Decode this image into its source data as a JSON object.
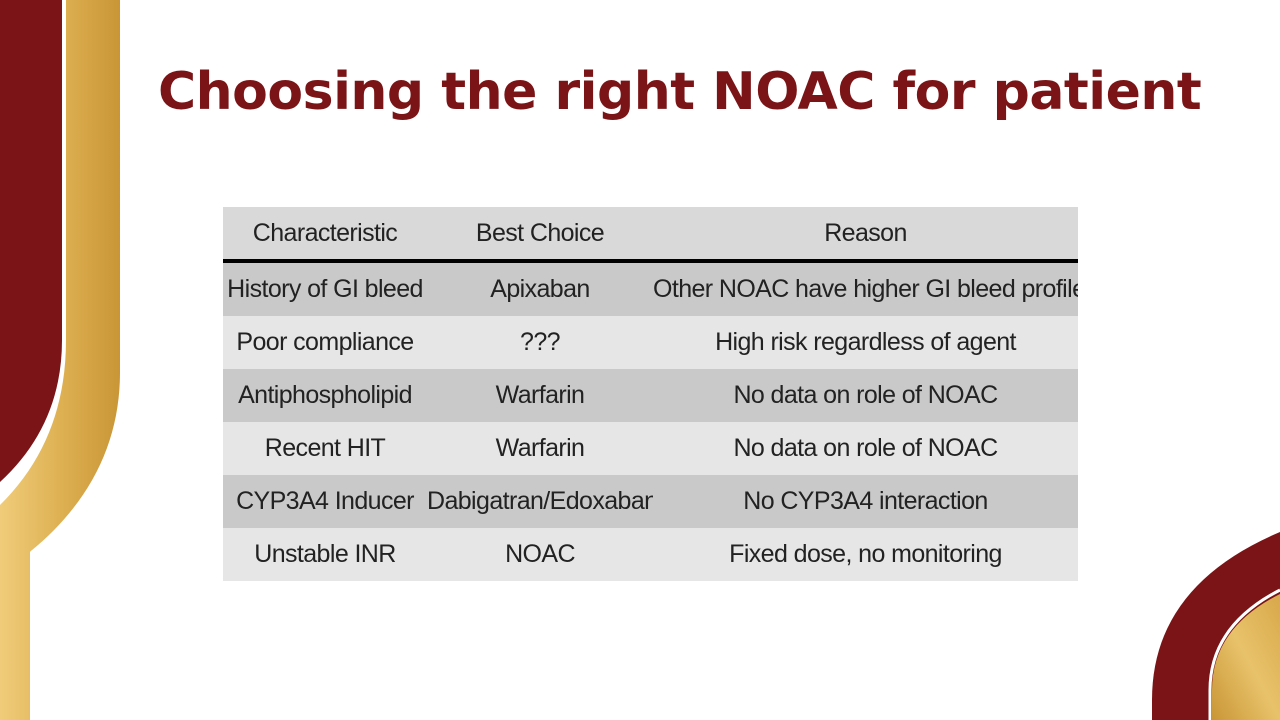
{
  "slide": {
    "title": "Choosing the right NOAC for patient"
  },
  "table": {
    "headers": [
      "Characteristic",
      "Best Choice",
      "Reason"
    ],
    "rows": [
      [
        "History of GI bleed",
        "Apixaban",
        "Other NOAC have higher GI bleed profile"
      ],
      [
        "Poor compliance",
        "???",
        "High risk regardless of agent"
      ],
      [
        "Antiphospholipid",
        "Warfarin",
        "No data on role of NOAC"
      ],
      [
        "Recent HIT",
        "Warfarin",
        "No data on role of NOAC"
      ],
      [
        "CYP3A4 Inducer",
        "Dabigatran/Edoxaban",
        "No CYP3A4 interaction"
      ],
      [
        "Unstable INR",
        "NOAC",
        "Fixed dose, no monitoring"
      ]
    ]
  },
  "colors": {
    "title": "#7a1416",
    "maroon": "#7a1416",
    "gold": "#dcae4f",
    "header_bg": "#d9d9d9",
    "row_dark": "#c9c9c9",
    "row_light": "#e6e6e6"
  }
}
